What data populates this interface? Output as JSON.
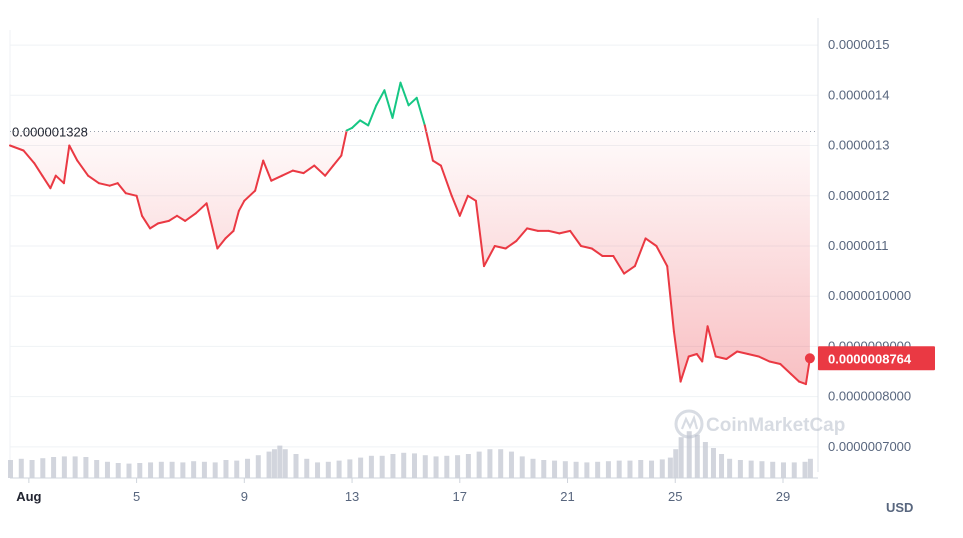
{
  "chart_data": {
    "type": "line",
    "y_ticks": [
      {
        "value": 1.5e-06,
        "label": "0.0000015"
      },
      {
        "value": 1.4e-06,
        "label": "0.0000014"
      },
      {
        "value": 1.3e-06,
        "label": "0.0000013"
      },
      {
        "value": 1.2e-06,
        "label": "0.0000012"
      },
      {
        "value": 1.1e-06,
        "label": "0.0000011"
      },
      {
        "value": 1e-06,
        "label": "0.0000010000"
      },
      {
        "value": 9e-07,
        "label": "0.0000009000"
      },
      {
        "value": 8e-07,
        "label": "0.0000008000"
      },
      {
        "value": 7e-07,
        "label": "0.0000007000"
      }
    ],
    "x_ticks": [
      {
        "day": 1,
        "label": "Aug",
        "strong": true
      },
      {
        "day": 5,
        "label": "5",
        "strong": false
      },
      {
        "day": 9,
        "label": "9",
        "strong": false
      },
      {
        "day": 13,
        "label": "13",
        "strong": false
      },
      {
        "day": 17,
        "label": "17",
        "strong": false
      },
      {
        "day": 21,
        "label": "21",
        "strong": false
      },
      {
        "day": 25,
        "label": "25",
        "strong": false
      },
      {
        "day": 29,
        "label": "29",
        "strong": false
      }
    ],
    "x_range": [
      0.3,
      30.3
    ],
    "y_range": [
      6.5e-07,
      1.53e-06
    ],
    "reference_price": {
      "value": 1.328e-06,
      "label": "0.000001328"
    },
    "current_price": {
      "value": 8.764e-07,
      "label": "0.0000008764"
    },
    "currency_label": "USD",
    "watermark": "CoinMarketCap",
    "colors": {
      "up": "#16c784",
      "down": "#ea3943",
      "volume": "#c3c7d1",
      "grid": "#eff2f5"
    },
    "series": [
      {
        "values": [
          [
            0.3,
            1.3e-06
          ],
          [
            0.8,
            1.29e-06
          ],
          [
            1.2,
            1.265e-06
          ],
          [
            1.5,
            1.24e-06
          ],
          [
            1.8,
            1.215e-06
          ],
          [
            2.0,
            1.24e-06
          ],
          [
            2.3,
            1.225e-06
          ],
          [
            2.5,
            1.3e-06
          ],
          [
            2.8,
            1.27e-06
          ],
          [
            3.2,
            1.24e-06
          ],
          [
            3.6,
            1.225e-06
          ],
          [
            4.0,
            1.22e-06
          ],
          [
            4.3,
            1.225e-06
          ],
          [
            4.6,
            1.205e-06
          ],
          [
            5.0,
            1.2e-06
          ],
          [
            5.2,
            1.16e-06
          ],
          [
            5.5,
            1.135e-06
          ],
          [
            5.8,
            1.145e-06
          ],
          [
            6.2,
            1.15e-06
          ],
          [
            6.5,
            1.16e-06
          ],
          [
            6.8,
            1.15e-06
          ],
          [
            7.2,
            1.165e-06
          ],
          [
            7.6,
            1.185e-06
          ],
          [
            8.0,
            1.095e-06
          ],
          [
            8.3,
            1.115e-06
          ],
          [
            8.6,
            1.13e-06
          ],
          [
            8.8,
            1.17e-06
          ],
          [
            9.0,
            1.19e-06
          ],
          [
            9.4,
            1.21e-06
          ],
          [
            9.7,
            1.27e-06
          ],
          [
            10.0,
            1.23e-06
          ],
          [
            10.4,
            1.24e-06
          ],
          [
            10.8,
            1.25e-06
          ],
          [
            11.2,
            1.245e-06
          ],
          [
            11.6,
            1.26e-06
          ],
          [
            12.0,
            1.24e-06
          ],
          [
            12.3,
            1.26e-06
          ],
          [
            12.6,
            1.28e-06
          ],
          [
            12.8,
            1.33e-06
          ],
          [
            13.0,
            1.335e-06
          ],
          [
            13.3,
            1.35e-06
          ],
          [
            13.6,
            1.34e-06
          ],
          [
            13.9,
            1.38e-06
          ],
          [
            14.2,
            1.41e-06
          ],
          [
            14.5,
            1.355e-06
          ],
          [
            14.8,
            1.425e-06
          ],
          [
            15.1,
            1.38e-06
          ],
          [
            15.4,
            1.395e-06
          ],
          [
            15.7,
            1.34e-06
          ],
          [
            16.0,
            1.27e-06
          ],
          [
            16.3,
            1.26e-06
          ],
          [
            16.7,
            1.2e-06
          ],
          [
            17.0,
            1.16e-06
          ],
          [
            17.3,
            1.2e-06
          ],
          [
            17.6,
            1.19e-06
          ],
          [
            17.9,
            1.06e-06
          ],
          [
            18.3,
            1.1e-06
          ],
          [
            18.7,
            1.095e-06
          ],
          [
            19.1,
            1.11e-06
          ],
          [
            19.5,
            1.135e-06
          ],
          [
            19.9,
            1.13e-06
          ],
          [
            20.3,
            1.13e-06
          ],
          [
            20.7,
            1.125e-06
          ],
          [
            21.1,
            1.13e-06
          ],
          [
            21.5,
            1.1e-06
          ],
          [
            21.9,
            1.095e-06
          ],
          [
            22.3,
            1.08e-06
          ],
          [
            22.7,
            1.08e-06
          ],
          [
            23.1,
            1.045e-06
          ],
          [
            23.5,
            1.06e-06
          ],
          [
            23.9,
            1.115e-06
          ],
          [
            24.3,
            1.1e-06
          ],
          [
            24.7,
            1.06e-06
          ],
          [
            24.95,
            9.3e-07
          ],
          [
            25.2,
            8.3e-07
          ],
          [
            25.5,
            8.8e-07
          ],
          [
            25.8,
            8.85e-07
          ],
          [
            26.0,
            8.7e-07
          ],
          [
            26.2,
            9.4e-07
          ],
          [
            26.5,
            8.8e-07
          ],
          [
            26.9,
            8.75e-07
          ],
          [
            27.3,
            8.9e-07
          ],
          [
            27.7,
            8.85e-07
          ],
          [
            28.1,
            8.8e-07
          ],
          [
            28.5,
            8.7e-07
          ],
          [
            28.9,
            8.65e-07
          ],
          [
            29.3,
            8.45e-07
          ],
          [
            29.6,
            8.3e-07
          ],
          [
            29.85,
            8.25e-07
          ],
          [
            30.0,
            8.76e-07
          ]
        ]
      }
    ],
    "volume_bars": [
      [
        0.3,
        0.3
      ],
      [
        0.7,
        0.32
      ],
      [
        1.1,
        0.3
      ],
      [
        1.5,
        0.33
      ],
      [
        1.9,
        0.35
      ],
      [
        2.3,
        0.36
      ],
      [
        2.7,
        0.36
      ],
      [
        3.1,
        0.35
      ],
      [
        3.5,
        0.3
      ],
      [
        3.9,
        0.27
      ],
      [
        4.3,
        0.25
      ],
      [
        4.7,
        0.24
      ],
      [
        5.1,
        0.25
      ],
      [
        5.5,
        0.26
      ],
      [
        5.9,
        0.27
      ],
      [
        6.3,
        0.27
      ],
      [
        6.7,
        0.26
      ],
      [
        7.1,
        0.28
      ],
      [
        7.5,
        0.27
      ],
      [
        7.9,
        0.26
      ],
      [
        8.3,
        0.3
      ],
      [
        8.7,
        0.29
      ],
      [
        9.1,
        0.32
      ],
      [
        9.5,
        0.38
      ],
      [
        9.9,
        0.44
      ],
      [
        10.1,
        0.48
      ],
      [
        10.3,
        0.54
      ],
      [
        10.5,
        0.48
      ],
      [
        10.9,
        0.4
      ],
      [
        11.3,
        0.32
      ],
      [
        11.7,
        0.26
      ],
      [
        12.1,
        0.27
      ],
      [
        12.5,
        0.29
      ],
      [
        12.9,
        0.31
      ],
      [
        13.3,
        0.34
      ],
      [
        13.7,
        0.37
      ],
      [
        14.1,
        0.37
      ],
      [
        14.5,
        0.4
      ],
      [
        14.9,
        0.42
      ],
      [
        15.3,
        0.41
      ],
      [
        15.7,
        0.38
      ],
      [
        16.1,
        0.36
      ],
      [
        16.5,
        0.37
      ],
      [
        16.9,
        0.38
      ],
      [
        17.3,
        0.4
      ],
      [
        17.7,
        0.44
      ],
      [
        18.1,
        0.48
      ],
      [
        18.5,
        0.48
      ],
      [
        18.9,
        0.44
      ],
      [
        19.3,
        0.36
      ],
      [
        19.7,
        0.32
      ],
      [
        20.1,
        0.3
      ],
      [
        20.5,
        0.29
      ],
      [
        20.9,
        0.28
      ],
      [
        21.3,
        0.27
      ],
      [
        21.7,
        0.26
      ],
      [
        22.1,
        0.27
      ],
      [
        22.5,
        0.28
      ],
      [
        22.9,
        0.29
      ],
      [
        23.3,
        0.29
      ],
      [
        23.7,
        0.3
      ],
      [
        24.1,
        0.29
      ],
      [
        24.5,
        0.31
      ],
      [
        24.8,
        0.34
      ],
      [
        25.0,
        0.48
      ],
      [
        25.2,
        0.68
      ],
      [
        25.5,
        0.78
      ],
      [
        25.8,
        0.72
      ],
      [
        26.1,
        0.6
      ],
      [
        26.4,
        0.5
      ],
      [
        26.7,
        0.4
      ],
      [
        27.0,
        0.32
      ],
      [
        27.4,
        0.3
      ],
      [
        27.8,
        0.29
      ],
      [
        28.2,
        0.28
      ],
      [
        28.6,
        0.27
      ],
      [
        29.0,
        0.26
      ],
      [
        29.4,
        0.26
      ],
      [
        29.8,
        0.27
      ],
      [
        30.0,
        0.32
      ]
    ]
  }
}
